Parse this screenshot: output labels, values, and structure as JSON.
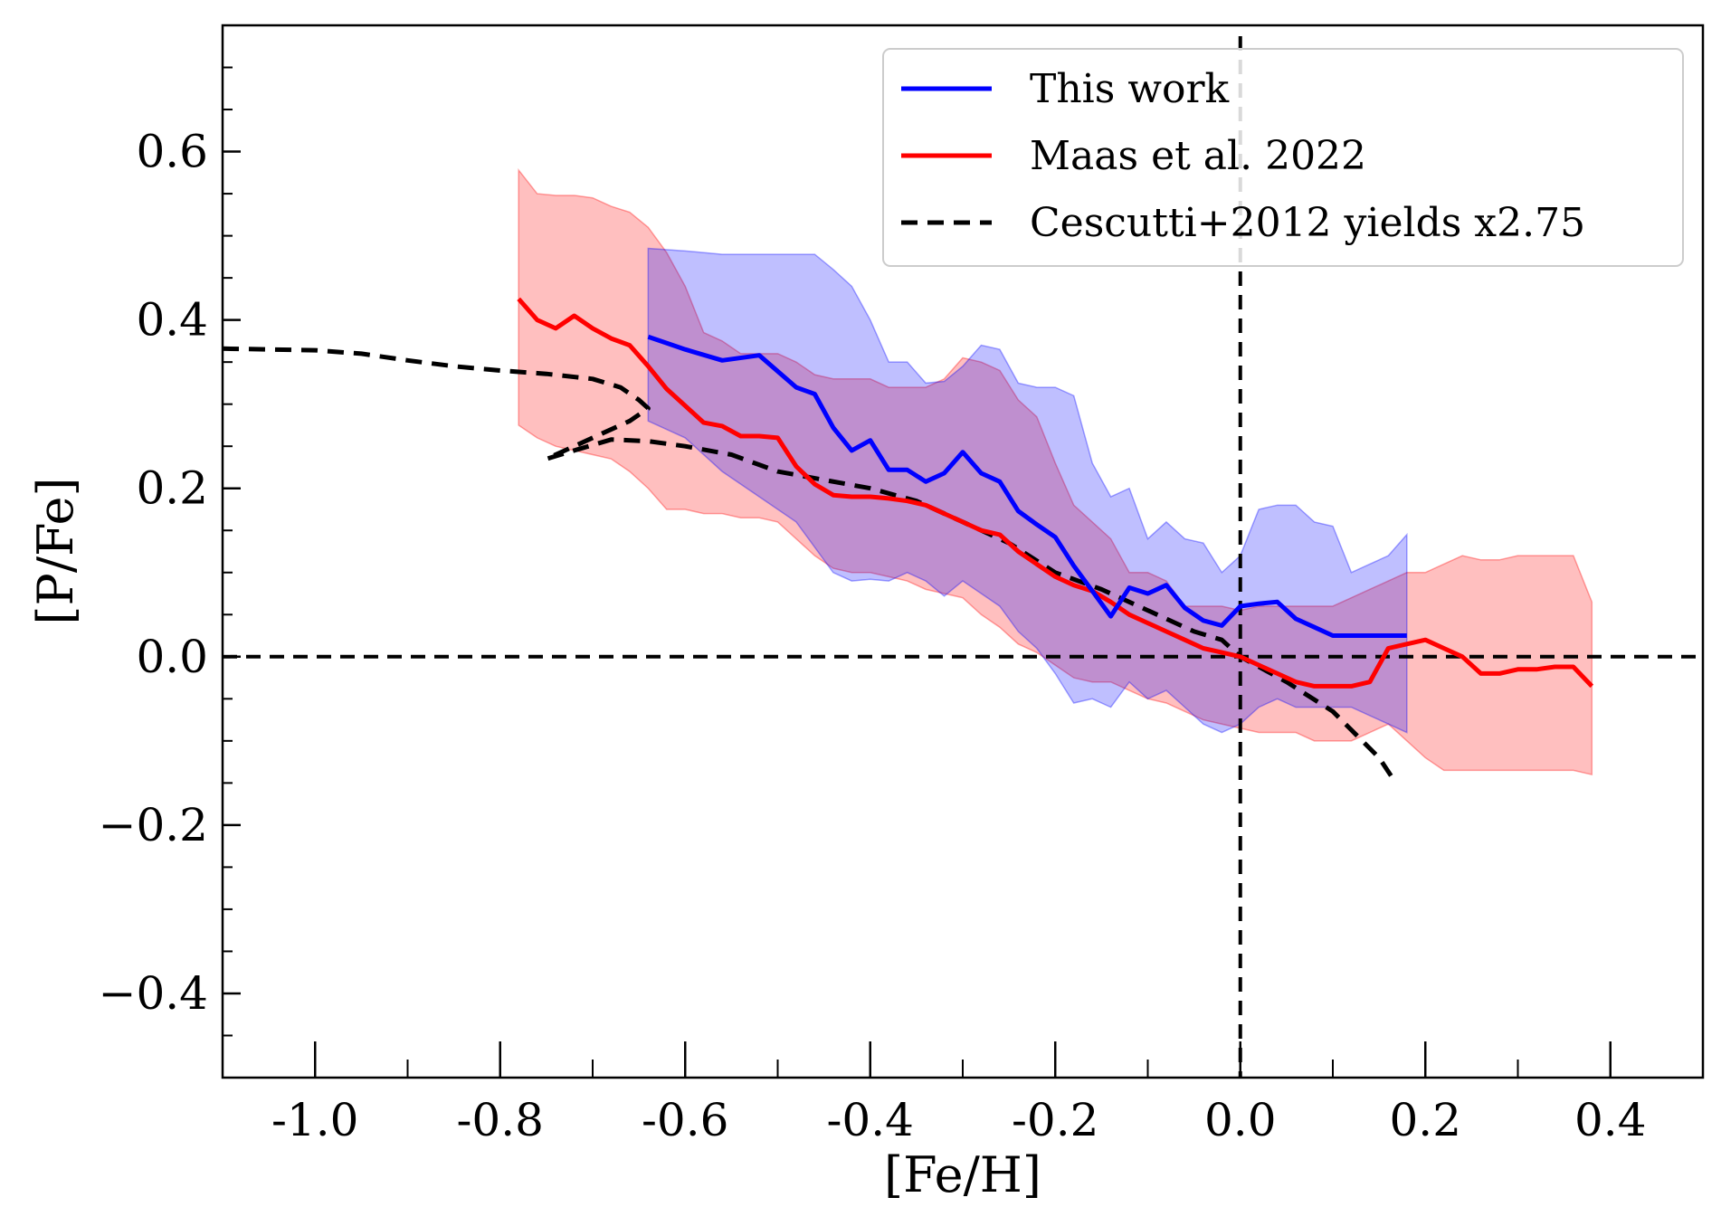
{
  "chart_data": {
    "type": "line",
    "title": "",
    "xlabel": "[Fe/H]",
    "ylabel": "[P/Fe]",
    "xlim": [
      -1.1,
      0.5
    ],
    "ylim": [
      -0.5,
      0.75
    ],
    "x_ticks": [
      -1.0,
      -0.8,
      -0.6,
      -0.4,
      -0.2,
      0.0,
      0.2,
      0.4
    ],
    "x_tick_labels": [
      "-1.0",
      "-0.8",
      "-0.6",
      "-0.4",
      "-0.2",
      "0.0",
      "0.2",
      "0.4"
    ],
    "y_ticks": [
      -0.4,
      -0.2,
      0.0,
      0.2,
      0.4,
      0.6
    ],
    "y_tick_labels": [
      "−0.4",
      "−0.2",
      "0.0",
      "0.2",
      "0.4",
      "0.6"
    ],
    "legend_position": "top-right",
    "reference_lines": [
      {
        "orientation": "horizontal",
        "value": 0.0,
        "style": "dashed",
        "color": "#000000"
      },
      {
        "orientation": "vertical",
        "value": 0.0,
        "style": "dashed",
        "color": "#000000"
      }
    ],
    "series": [
      {
        "name": "This work",
        "color": "#0000ff",
        "style": "solid",
        "x": [
          -0.64,
          -0.6,
          -0.56,
          -0.52,
          -0.48,
          -0.46,
          -0.44,
          -0.42,
          -0.4,
          -0.38,
          -0.36,
          -0.34,
          -0.32,
          -0.3,
          -0.28,
          -0.26,
          -0.24,
          -0.22,
          -0.2,
          -0.18,
          -0.16,
          -0.14,
          -0.12,
          -0.1,
          -0.08,
          -0.06,
          -0.04,
          -0.02,
          0.0,
          0.02,
          0.04,
          0.06,
          0.08,
          0.1,
          0.12,
          0.14,
          0.16,
          0.18
        ],
        "y": [
          0.38,
          0.365,
          0.352,
          0.358,
          0.32,
          0.312,
          0.272,
          0.245,
          0.257,
          0.222,
          0.222,
          0.208,
          0.218,
          0.243,
          0.218,
          0.208,
          0.173,
          0.157,
          0.142,
          0.108,
          0.078,
          0.048,
          0.082,
          0.075,
          0.085,
          0.058,
          0.043,
          0.037,
          0.06,
          0.063,
          0.065,
          0.045,
          0.035,
          0.025,
          0.025,
          0.025,
          0.025,
          0.025
        ],
        "band_upper": [
          0.485,
          0.482,
          0.478,
          0.478,
          0.478,
          0.478,
          0.46,
          0.44,
          0.4,
          0.35,
          0.35,
          0.325,
          0.327,
          0.345,
          0.37,
          0.365,
          0.325,
          0.32,
          0.32,
          0.31,
          0.23,
          0.19,
          0.2,
          0.14,
          0.16,
          0.14,
          0.135,
          0.1,
          0.12,
          0.175,
          0.18,
          0.18,
          0.16,
          0.155,
          0.1,
          0.11,
          0.12,
          0.145
        ],
        "band_lower": [
          0.28,
          0.26,
          0.22,
          0.19,
          0.16,
          0.13,
          0.1,
          0.09,
          0.092,
          0.09,
          0.1,
          0.09,
          0.072,
          0.09,
          0.075,
          0.06,
          0.03,
          0.01,
          -0.02,
          -0.055,
          -0.05,
          -0.06,
          -0.03,
          -0.05,
          -0.04,
          -0.06,
          -0.08,
          -0.09,
          -0.08,
          -0.06,
          -0.05,
          -0.06,
          -0.06,
          -0.06,
          -0.06,
          -0.07,
          -0.08,
          -0.09
        ]
      },
      {
        "name": "Maas et al. 2022",
        "color": "#ff0000",
        "style": "solid",
        "x": [
          -0.78,
          -0.76,
          -0.74,
          -0.72,
          -0.7,
          -0.68,
          -0.66,
          -0.64,
          -0.62,
          -0.6,
          -0.58,
          -0.56,
          -0.54,
          -0.52,
          -0.5,
          -0.48,
          -0.46,
          -0.44,
          -0.42,
          -0.4,
          -0.38,
          -0.36,
          -0.34,
          -0.32,
          -0.3,
          -0.28,
          -0.26,
          -0.24,
          -0.22,
          -0.2,
          -0.18,
          -0.16,
          -0.14,
          -0.12,
          -0.1,
          -0.08,
          -0.06,
          -0.04,
          -0.02,
          0.0,
          0.02,
          0.04,
          0.06,
          0.08,
          0.1,
          0.12,
          0.14,
          0.16,
          0.18,
          0.2,
          0.22,
          0.24,
          0.26,
          0.28,
          0.3,
          0.32,
          0.34,
          0.36,
          0.38
        ],
        "y": [
          0.425,
          0.4,
          0.39,
          0.405,
          0.39,
          0.378,
          0.37,
          0.345,
          0.318,
          0.298,
          0.278,
          0.274,
          0.262,
          0.262,
          0.26,
          0.226,
          0.205,
          0.192,
          0.19,
          0.19,
          0.188,
          0.185,
          0.18,
          0.17,
          0.16,
          0.15,
          0.145,
          0.125,
          0.11,
          0.095,
          0.085,
          0.078,
          0.065,
          0.05,
          0.04,
          0.03,
          0.02,
          0.01,
          0.005,
          0.0,
          -0.01,
          -0.02,
          -0.03,
          -0.035,
          -0.035,
          -0.035,
          -0.03,
          0.01,
          0.015,
          0.02,
          0.01,
          0.0,
          -0.02,
          -0.02,
          -0.015,
          -0.015,
          -0.012,
          -0.012,
          -0.035
        ],
        "band_upper": [
          0.578,
          0.55,
          0.548,
          0.548,
          0.545,
          0.535,
          0.528,
          0.51,
          0.48,
          0.44,
          0.385,
          0.375,
          0.36,
          0.36,
          0.36,
          0.35,
          0.335,
          0.33,
          0.33,
          0.33,
          0.32,
          0.32,
          0.32,
          0.33,
          0.355,
          0.35,
          0.34,
          0.305,
          0.285,
          0.23,
          0.18,
          0.16,
          0.14,
          0.1,
          0.1,
          0.09,
          0.06,
          0.06,
          0.06,
          0.055,
          0.06,
          0.06,
          0.06,
          0.06,
          0.06,
          0.07,
          0.08,
          0.09,
          0.1,
          0.1,
          0.11,
          0.12,
          0.115,
          0.115,
          0.12,
          0.12,
          0.12,
          0.12,
          0.065
        ],
        "band_lower": [
          0.275,
          0.26,
          0.25,
          0.245,
          0.24,
          0.235,
          0.22,
          0.2,
          0.175,
          0.175,
          0.17,
          0.17,
          0.165,
          0.165,
          0.16,
          0.14,
          0.12,
          0.105,
          0.1,
          0.1,
          0.095,
          0.09,
          0.08,
          0.075,
          0.07,
          0.05,
          0.035,
          0.015,
          0.005,
          -0.01,
          -0.025,
          -0.03,
          -0.03,
          -0.04,
          -0.05,
          -0.055,
          -0.065,
          -0.075,
          -0.08,
          -0.085,
          -0.09,
          -0.09,
          -0.09,
          -0.1,
          -0.1,
          -0.1,
          -0.09,
          -0.08,
          -0.1,
          -0.12,
          -0.135,
          -0.135,
          -0.135,
          -0.135,
          -0.135,
          -0.135,
          -0.135,
          -0.135,
          -0.14
        ]
      },
      {
        "name": "Cescutti+2012 yields x2.75",
        "color": "#000000",
        "style": "dashed",
        "x": [
          -1.1,
          -1.0,
          -0.95,
          -0.9,
          -0.85,
          -0.8,
          -0.75,
          -0.7,
          -0.67,
          -0.65,
          -0.64,
          -0.66,
          -0.69,
          -0.72,
          -0.75,
          -0.72,
          -0.68,
          -0.64,
          -0.6,
          -0.55,
          -0.5,
          -0.45,
          -0.4,
          -0.35,
          -0.3,
          -0.25,
          -0.2,
          -0.15,
          -0.1,
          -0.05,
          -0.02,
          0.0,
          0.05,
          0.1,
          0.15,
          0.165
        ],
        "y": [
          0.366,
          0.364,
          0.36,
          0.352,
          0.345,
          0.34,
          0.336,
          0.33,
          0.32,
          0.305,
          0.295,
          0.28,
          0.265,
          0.25,
          0.235,
          0.245,
          0.258,
          0.256,
          0.25,
          0.24,
          0.22,
          0.21,
          0.2,
          0.185,
          0.16,
          0.135,
          0.1,
          0.08,
          0.055,
          0.03,
          0.02,
          0.0,
          -0.03,
          -0.065,
          -0.12,
          -0.145
        ]
      }
    ]
  }
}
